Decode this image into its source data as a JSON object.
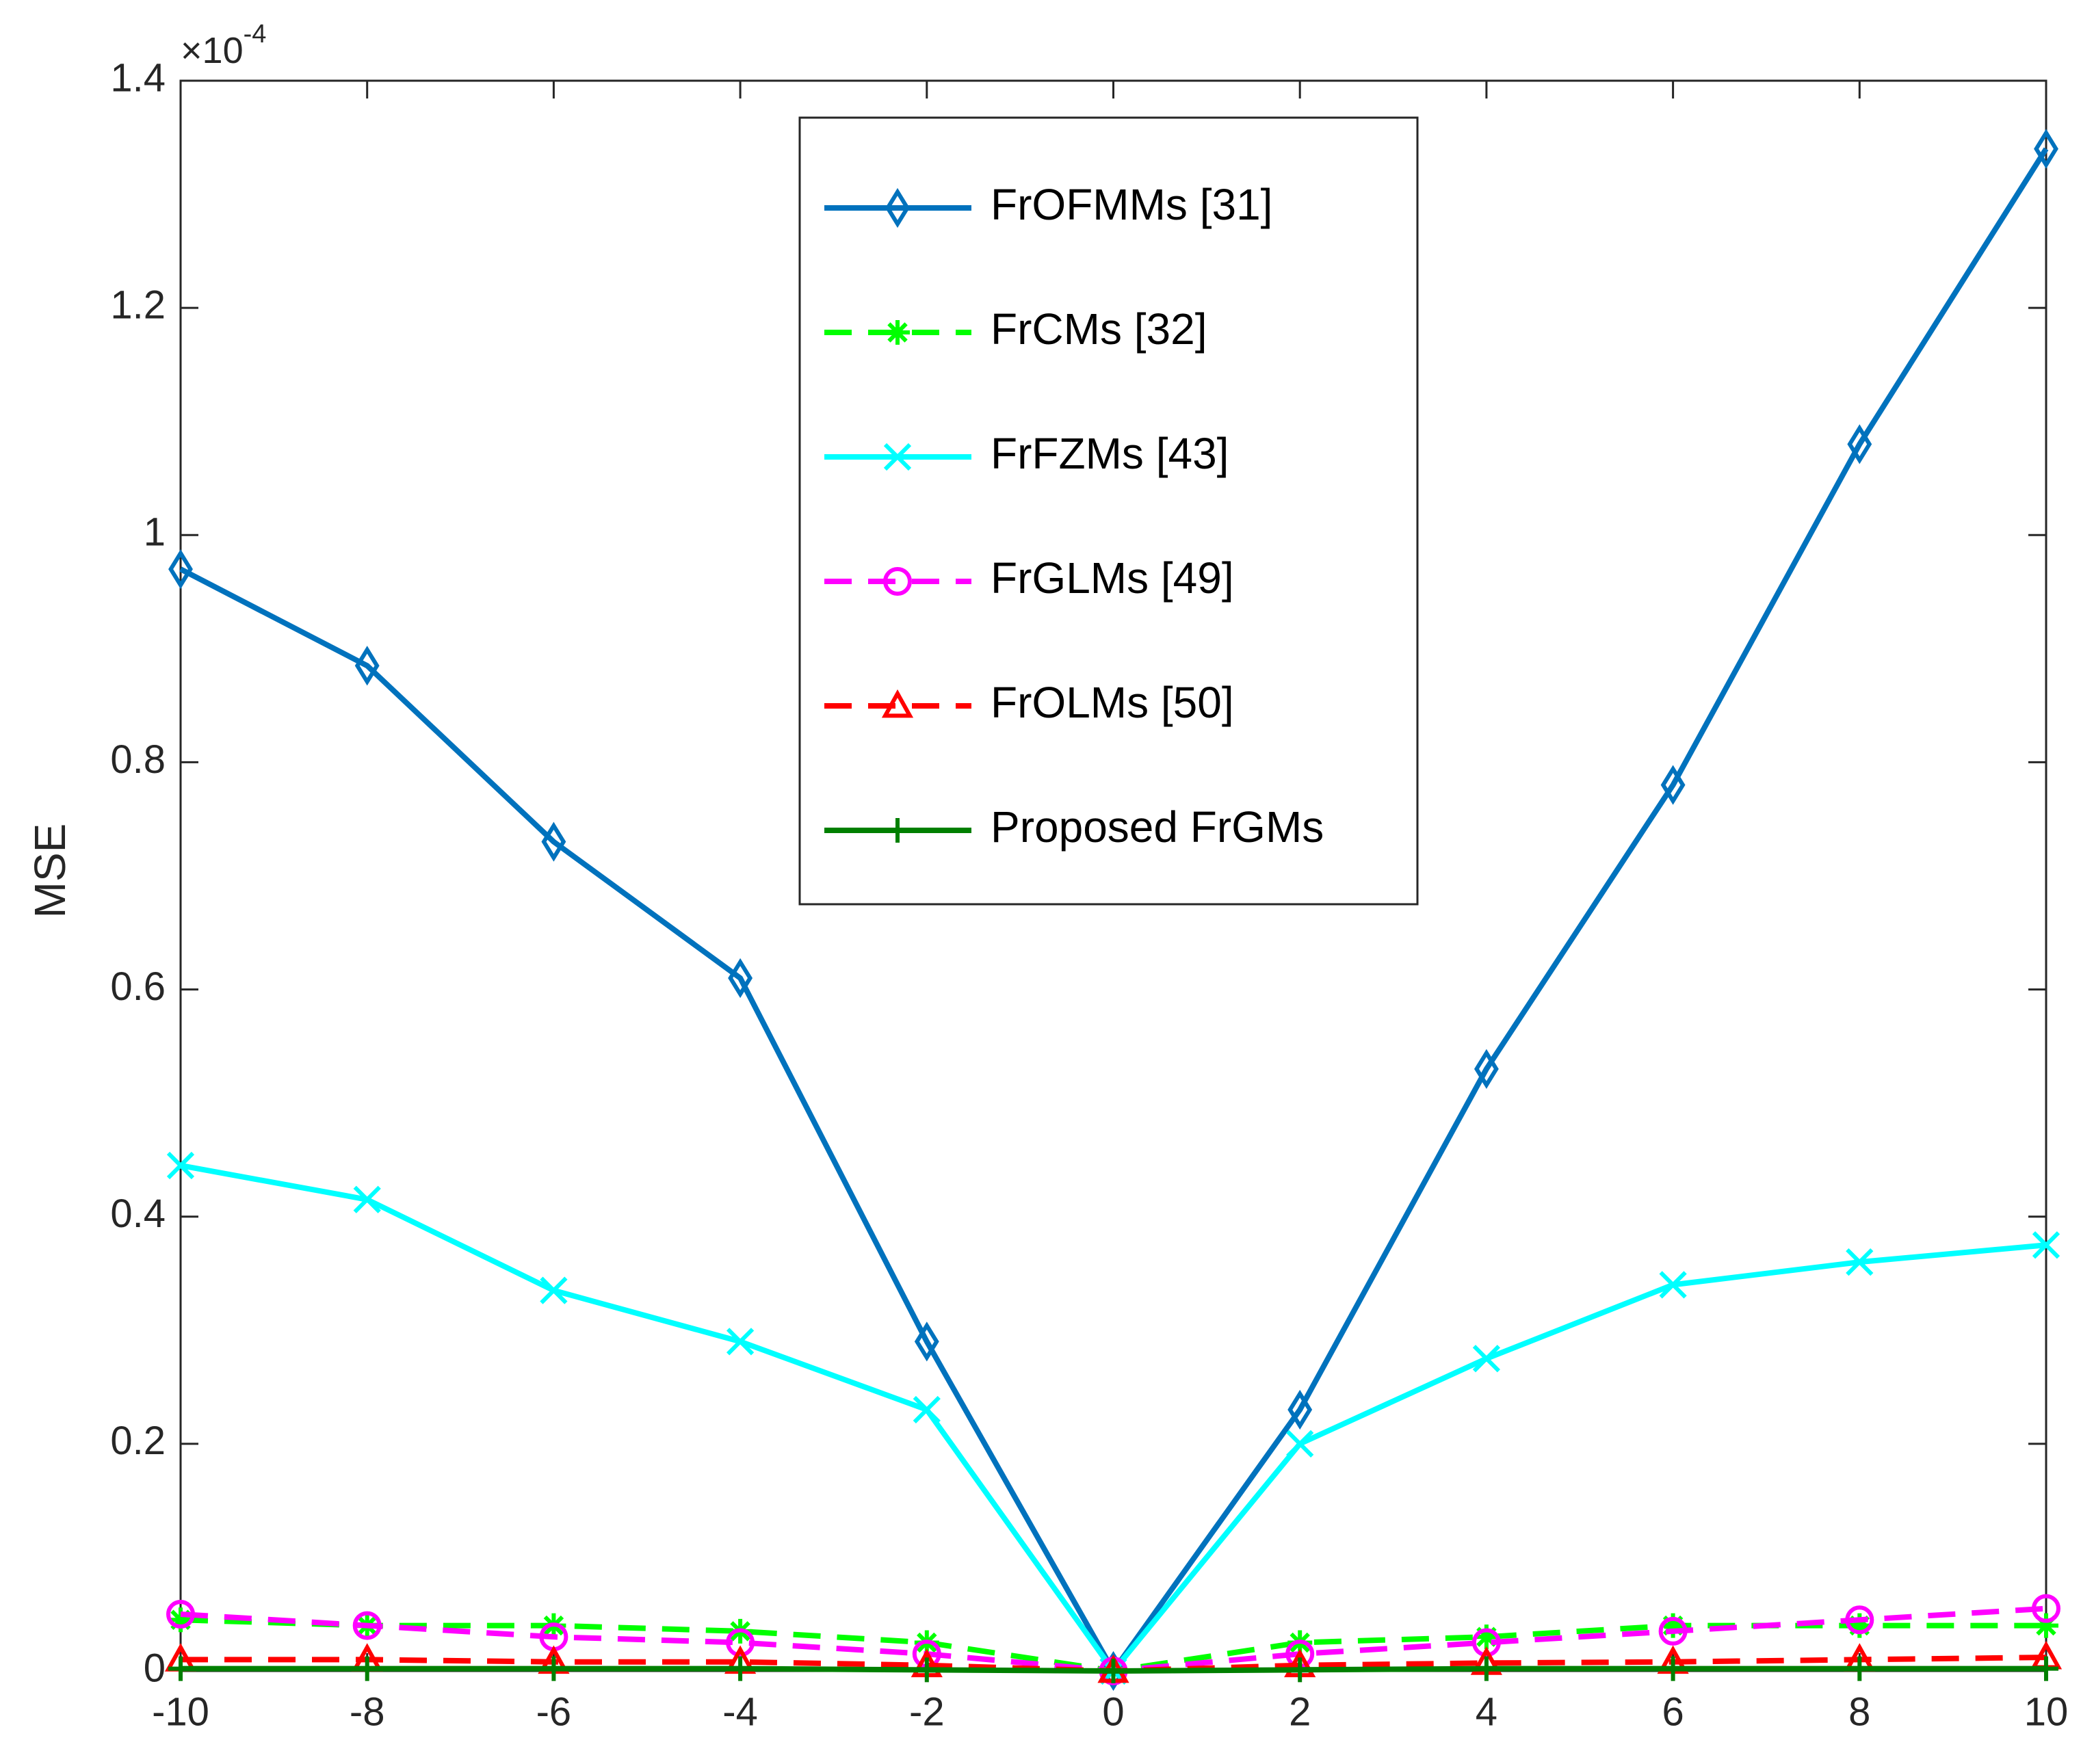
{
  "chart_data": {
    "type": "line",
    "ylabel": "MSE",
    "y_multiplier_base": "×10",
    "y_multiplier_exponent": "-4",
    "x": [
      -10,
      -8,
      -6,
      -4,
      -2,
      0,
      2,
      4,
      6,
      8,
      10
    ],
    "xlim": [
      -10,
      10
    ],
    "xticks": [
      -10,
      -8,
      -6,
      -4,
      -2,
      0,
      2,
      4,
      6,
      8,
      10
    ],
    "ylim": [
      0,
      1.4
    ],
    "yticks": [
      0,
      0.2,
      0.4,
      0.6,
      0.8,
      1,
      1.2,
      1.4
    ],
    "legend": "top-center",
    "series": [
      {
        "name": "FrOFMMs [31]",
        "color": "#0072bd",
        "style": "solid",
        "marker": "diamond",
        "values": [
          0.97,
          0.885,
          0.73,
          0.61,
          0.29,
          0.0,
          0.23,
          0.53,
          0.78,
          1.08,
          1.34
        ]
      },
      {
        "name": "FrCMs [32]",
        "color": "#00ff00",
        "style": "dashed",
        "marker": "asterisk",
        "values": [
          0.045,
          0.04,
          0.04,
          0.035,
          0.025,
          0.0,
          0.025,
          0.03,
          0.04,
          0.04,
          0.04
        ]
      },
      {
        "name": "FrFZMs [43]",
        "color": "#00ffff",
        "style": "solid",
        "marker": "x",
        "values": [
          0.445,
          0.415,
          0.335,
          0.29,
          0.23,
          0.0,
          0.2,
          0.275,
          0.34,
          0.36,
          0.375
        ]
      },
      {
        "name": "FrGLMs [49]",
        "color": "#ff00ff",
        "style": "dashed",
        "marker": "circle",
        "values": [
          0.05,
          0.04,
          0.03,
          0.025,
          0.015,
          0.0,
          0.015,
          0.025,
          0.035,
          0.045,
          0.055
        ]
      },
      {
        "name": "FrOLMs [50]",
        "color": "#ff0000",
        "style": "dashed",
        "marker": "triangle",
        "values": [
          0.01,
          0.01,
          0.008,
          0.008,
          0.005,
          0.0,
          0.005,
          0.007,
          0.008,
          0.01,
          0.012
        ]
      },
      {
        "name": "Proposed FrGMs",
        "color": "#007f00",
        "style": "solid",
        "marker": "plus",
        "values": [
          0.002,
          0.002,
          0.002,
          0.002,
          0.001,
          0.0,
          0.001,
          0.002,
          0.002,
          0.002,
          0.002
        ]
      }
    ]
  }
}
